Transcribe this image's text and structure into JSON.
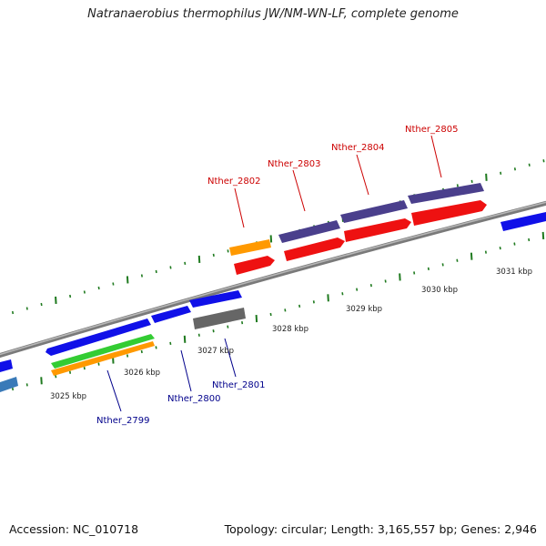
{
  "title": "Natranaerobius thermophilus JW/NM-WN-LF, complete genome",
  "footer": {
    "accession": "Accession: NC_010718",
    "summary": "Topology: circular; Length: 3,165,557 bp; Genes: 2,946"
  },
  "colors": {
    "backbone": "#8a8a8a",
    "tick": "#1f7a1f",
    "label_top": "#cc0000",
    "label_bottom": "#00008b"
  },
  "scale_labels": [
    "3025 kbp",
    "3026 kbp",
    "3027 kbp",
    "3028 kbp",
    "3029 kbp",
    "3030 kbp",
    "3031 kbp"
  ],
  "gene_labels_top": [
    "Nther_2802",
    "Nther_2803",
    "Nther_2804",
    "Nther_2805"
  ],
  "gene_labels_bottom": [
    "Nther_2799",
    "Nther_2800",
    "Nther_2801"
  ]
}
